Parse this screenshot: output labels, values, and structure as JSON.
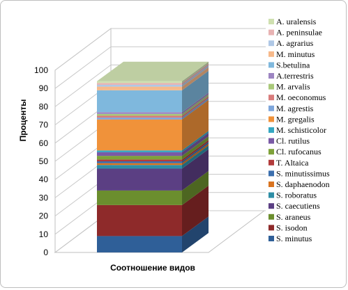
{
  "chart_data": {
    "type": "bar",
    "stacked": true,
    "three_d": true,
    "categories": [
      "Соотношение видов"
    ],
    "xlabel": "Соотношение видов",
    "ylabel": "Проценты",
    "ylim": [
      0,
      100
    ],
    "yticks": [
      0,
      10,
      20,
      30,
      40,
      50,
      60,
      70,
      80,
      90,
      100
    ],
    "grid": true,
    "legend_position": "right",
    "series": [
      {
        "name": "S. minutus",
        "values": [
          9
        ],
        "color": "#2F5F98"
      },
      {
        "name": "S. isodon",
        "values": [
          17
        ],
        "color": "#8E2A2A"
      },
      {
        "name": "S. araneus",
        "values": [
          8
        ],
        "color": "#6B8E2E"
      },
      {
        "name": "S. caecutiens",
        "values": [
          12
        ],
        "color": "#5B3F83"
      },
      {
        "name": "S. roboratus",
        "values": [
          2
        ],
        "color": "#2E8EA6"
      },
      {
        "name": "S. daphaenodon",
        "values": [
          1
        ],
        "color": "#D9731F"
      },
      {
        "name": "S. minutissimus",
        "values": [
          1
        ],
        "color": "#3B6FAE"
      },
      {
        "name": "T. Altaica",
        "values": [
          1
        ],
        "color": "#B23B3B"
      },
      {
        "name": "Cl. rufocanus",
        "values": [
          2
        ],
        "color": "#7FA23A"
      },
      {
        "name": "Cl. rutilus",
        "values": [
          2
        ],
        "color": "#7A5AA6"
      },
      {
        "name": "M. schisticolor",
        "values": [
          1
        ],
        "color": "#35A7C2"
      },
      {
        "name": "M. gregalis",
        "values": [
          17
        ],
        "color": "#F0923A"
      },
      {
        "name": "M. agrestis",
        "values": [
          1
        ],
        "color": "#7EA6DB"
      },
      {
        "name": "M. oeconomus",
        "values": [
          1
        ],
        "color": "#D97C7C"
      },
      {
        "name": "M. arvalis",
        "values": [
          1
        ],
        "color": "#A9C97A"
      },
      {
        "name": "A.terrestris",
        "values": [
          1
        ],
        "color": "#9D85C2"
      },
      {
        "name": "S.betulina",
        "values": [
          12
        ],
        "color": "#7FB8DD"
      },
      {
        "name": "M. minutus",
        "values": [
          2
        ],
        "color": "#F7B98A"
      },
      {
        "name": "A. agrarius",
        "values": [
          1
        ],
        "color": "#AFC8E6"
      },
      {
        "name": "A. peninsulae",
        "values": [
          1
        ],
        "color": "#E8B3B3"
      },
      {
        "name": "A. uralensis",
        "values": [
          1
        ],
        "color": "#CFE0B0"
      }
    ]
  }
}
